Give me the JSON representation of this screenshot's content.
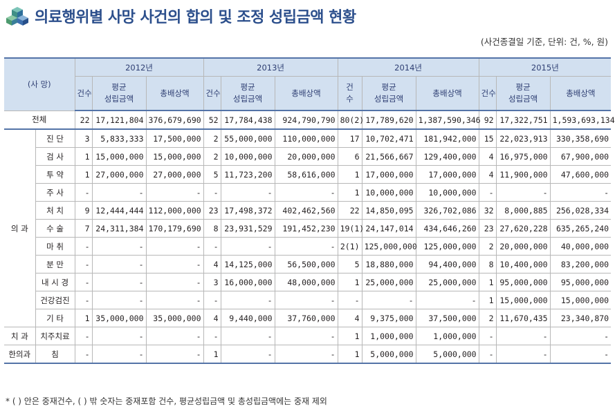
{
  "title": "의료행위별 사망 사건의 합의 및 조정 성립금액 현황",
  "unit_note": "(사건종결일 기준, 단위: 건, %, 원)",
  "colors": {
    "title": "#2c4f8c",
    "header_bg": "#d2e0f0",
    "header_text": "#2f3f73",
    "rule": "#5373a7"
  },
  "icon": "cube-stack-icon",
  "header": {
    "corner": "(사 망)",
    "years": [
      "2012년",
      "2013년",
      "2014년",
      "2015년"
    ],
    "cols": {
      "count": "건수",
      "count_split": "건\n수",
      "avg": "평균\n성립금액",
      "total": "총배상액"
    }
  },
  "total_row": {
    "label": "전체",
    "cells": [
      "22",
      "17,121,804",
      "376,679,690",
      "52",
      "17,784,438",
      "924,790,790",
      "80(2)",
      "17,789,620",
      "1,387,590,346",
      "92",
      "17,322,751",
      "1,593,693,134"
    ]
  },
  "groups": [
    {
      "name": "의 과",
      "rows": [
        {
          "label": "진 단",
          "cells": [
            "3",
            "5,833,333",
            "17,500,000",
            "2",
            "55,000,000",
            "110,000,000",
            "17",
            "10,702,471",
            "181,942,000",
            "15",
            "22,023,913",
            "330,358,690"
          ]
        },
        {
          "label": "검 사",
          "cells": [
            "1",
            "15,000,000",
            "15,000,000",
            "2",
            "10,000,000",
            "20,000,000",
            "6",
            "21,566,667",
            "129,400,000",
            "4",
            "16,975,000",
            "67,900,000"
          ]
        },
        {
          "label": "투 약",
          "cells": [
            "1",
            "27,000,000",
            "27,000,000",
            "5",
            "11,723,200",
            "58,616,000",
            "1",
            "17,000,000",
            "17,000,000",
            "4",
            "11,900,000",
            "47,600,000"
          ]
        },
        {
          "label": "주 사",
          "cells": [
            "-",
            "-",
            "-",
            "-",
            "-",
            "-",
            "1",
            "10,000,000",
            "10,000,000",
            "-",
            "-",
            "-"
          ]
        },
        {
          "label": "처 치",
          "cells": [
            "9",
            "12,444,444",
            "112,000,000",
            "23",
            "17,498,372",
            "402,462,560",
            "22",
            "14,850,095",
            "326,702,086",
            "32",
            "8,000,885",
            "256,028,334"
          ]
        },
        {
          "label": "수 술",
          "cells": [
            "7",
            "24,311,384",
            "170,179,690",
            "8",
            "23,931,529",
            "191,452,230",
            "19(1)",
            "24,147,014",
            "434,646,260",
            "23",
            "27,620,228",
            "635,265,240"
          ]
        },
        {
          "label": "마 취",
          "cells": [
            "-",
            "-",
            "-",
            "-",
            "-",
            "-",
            "2(1)",
            "125,000,000",
            "125,000,000",
            "2",
            "20,000,000",
            "40,000,000"
          ]
        },
        {
          "label": "분 만",
          "cells": [
            "-",
            "-",
            "-",
            "4",
            "14,125,000",
            "56,500,000",
            "5",
            "18,880,000",
            "94,400,000",
            "8",
            "10,400,000",
            "83,200,000"
          ]
        },
        {
          "label": "내 시 경",
          "cells": [
            "-",
            "-",
            "-",
            "3",
            "16,000,000",
            "48,000,000",
            "1",
            "25,000,000",
            "25,000,000",
            "1",
            "95,000,000",
            "95,000,000"
          ]
        },
        {
          "label": "건강검진",
          "cells": [
            "-",
            "-",
            "-",
            "-",
            "-",
            "-",
            "-",
            "-",
            "-",
            "1",
            "15,000,000",
            "15,000,000"
          ]
        },
        {
          "label": "기 타",
          "cells": [
            "1",
            "35,000,000",
            "35,000,000",
            "4",
            "9,440,000",
            "37,760,000",
            "4",
            "9,375,000",
            "37,500,000",
            "2",
            "11,670,435",
            "23,340,870"
          ]
        }
      ]
    },
    {
      "name": "치 과",
      "rows": [
        {
          "label": "치주치료",
          "cells": [
            "-",
            "-",
            "-",
            "-",
            "-",
            "-",
            "1",
            "1,000,000",
            "1,000,000",
            "-",
            "-",
            "-"
          ]
        }
      ]
    },
    {
      "name": "한의과",
      "rows": [
        {
          "label": "침",
          "cells": [
            "-",
            "-",
            "-",
            "1",
            "-",
            "-",
            "1",
            "5,000,000",
            "5,000,000",
            "-",
            "-",
            "-"
          ]
        }
      ]
    }
  ],
  "footnote": "* ( ) 안은 중재건수, ( ) 밖 숫자는 중재포함 건수, 평균성립금액 및 총성립금액에는 중재 제외"
}
